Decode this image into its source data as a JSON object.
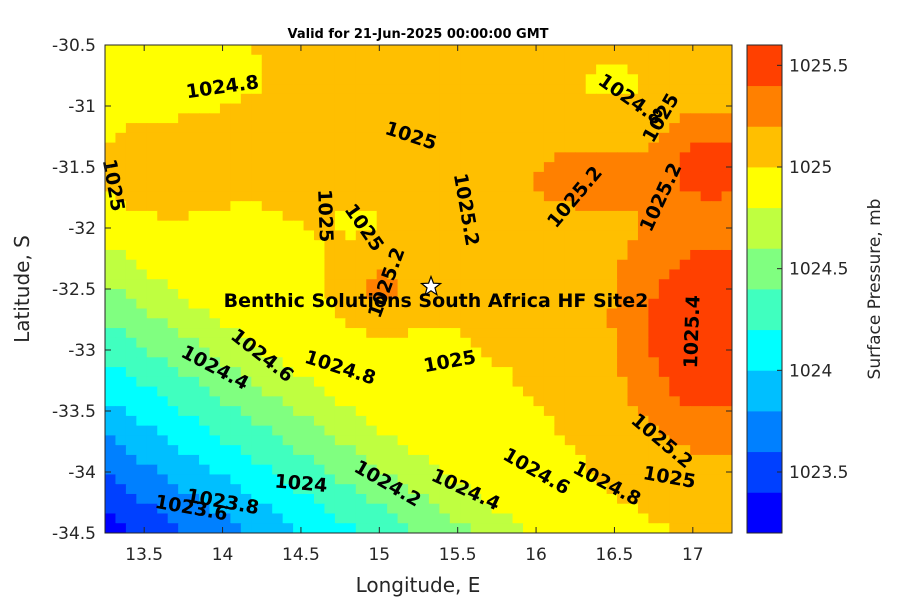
{
  "chart_data": {
    "type": "contourf",
    "title": "Valid for 21-Jun-2025 00:00:00 GMT",
    "xlabel": "Longitude, E",
    "ylabel": "Latitude, S",
    "xlim": [
      13.25,
      17.25
    ],
    "ylim": [
      -34.5,
      -30.5
    ],
    "x_ticks": [
      "13.5",
      "14",
      "14.5",
      "15",
      "15.5",
      "16",
      "16.5",
      "17"
    ],
    "y_ticks": [
      "-30.5",
      "-31",
      "-31.5",
      "-32",
      "-32.5",
      "-33",
      "-33.5",
      "-34",
      "-34.5"
    ],
    "colorbar": {
      "label": "Surface Pressure, mb",
      "range": [
        1023.2,
        1025.6
      ],
      "ticks": [
        "1023.5",
        "1024",
        "1024.5",
        "1025",
        "1025.5"
      ],
      "levels": [
        1023.2,
        1023.4,
        1023.6,
        1023.8,
        1024.0,
        1024.2,
        1024.4,
        1024.6,
        1024.8,
        1025.0,
        1025.2,
        1025.4,
        1025.6
      ],
      "colors": [
        "#0000ff",
        "#0040ff",
        "#0080ff",
        "#00bfff",
        "#00ffff",
        "#40ffbf",
        "#80ff80",
        "#bfff40",
        "#ffff00",
        "#ffbf00",
        "#ff8000",
        "#ff4000"
      ]
    },
    "contour_labels": [
      {
        "text": "1024.8",
        "lon": 14.0,
        "lat": -30.85
      },
      {
        "text": "1025",
        "lon": 15.2,
        "lat": -31.25
      },
      {
        "text": "1024.8",
        "lon": 16.6,
        "lat": -30.95
      },
      {
        "text": "1025",
        "lon": 16.8,
        "lat": -31.1
      },
      {
        "text": "1025",
        "lon": 13.3,
        "lat": -31.65
      },
      {
        "text": "1025",
        "lon": 14.65,
        "lat": -31.9
      },
      {
        "text": "1025",
        "lon": 14.9,
        "lat": -32.0
      },
      {
        "text": "1025.2",
        "lon": 15.55,
        "lat": -31.85
      },
      {
        "text": "1025.2",
        "lon": 16.25,
        "lat": -31.75
      },
      {
        "text": "1025.2",
        "lon": 16.8,
        "lat": -31.75
      },
      {
        "text": "1025.2",
        "lon": 15.05,
        "lat": -32.45
      },
      {
        "text": "1025.4",
        "lon": 17.0,
        "lat": -32.85
      },
      {
        "text": "1024.6",
        "lon": 14.25,
        "lat": -33.05
      },
      {
        "text": "1024.8",
        "lon": 14.75,
        "lat": -33.15
      },
      {
        "text": "1024.4",
        "lon": 13.95,
        "lat": -33.15
      },
      {
        "text": "1025",
        "lon": 15.45,
        "lat": -33.1
      },
      {
        "text": "1025.2",
        "lon": 16.8,
        "lat": -33.75
      },
      {
        "text": "1025",
        "lon": 16.85,
        "lat": -34.05
      },
      {
        "text": "1024.8",
        "lon": 16.45,
        "lat": -34.1
      },
      {
        "text": "1024.6",
        "lon": 16.0,
        "lat": -34.0
      },
      {
        "text": "1024.4",
        "lon": 15.55,
        "lat": -34.15
      },
      {
        "text": "1024.2",
        "lon": 15.05,
        "lat": -34.1
      },
      {
        "text": "1024",
        "lon": 14.5,
        "lat": -34.1
      },
      {
        "text": "1023.8",
        "lon": 14.0,
        "lat": -34.25
      },
      {
        "text": "1023.6",
        "lon": 13.8,
        "lat": -34.3
      }
    ],
    "site": {
      "name": "Benthic Solutions South Africa HF Site2",
      "lon": 15.33,
      "lat": -32.48
    }
  }
}
